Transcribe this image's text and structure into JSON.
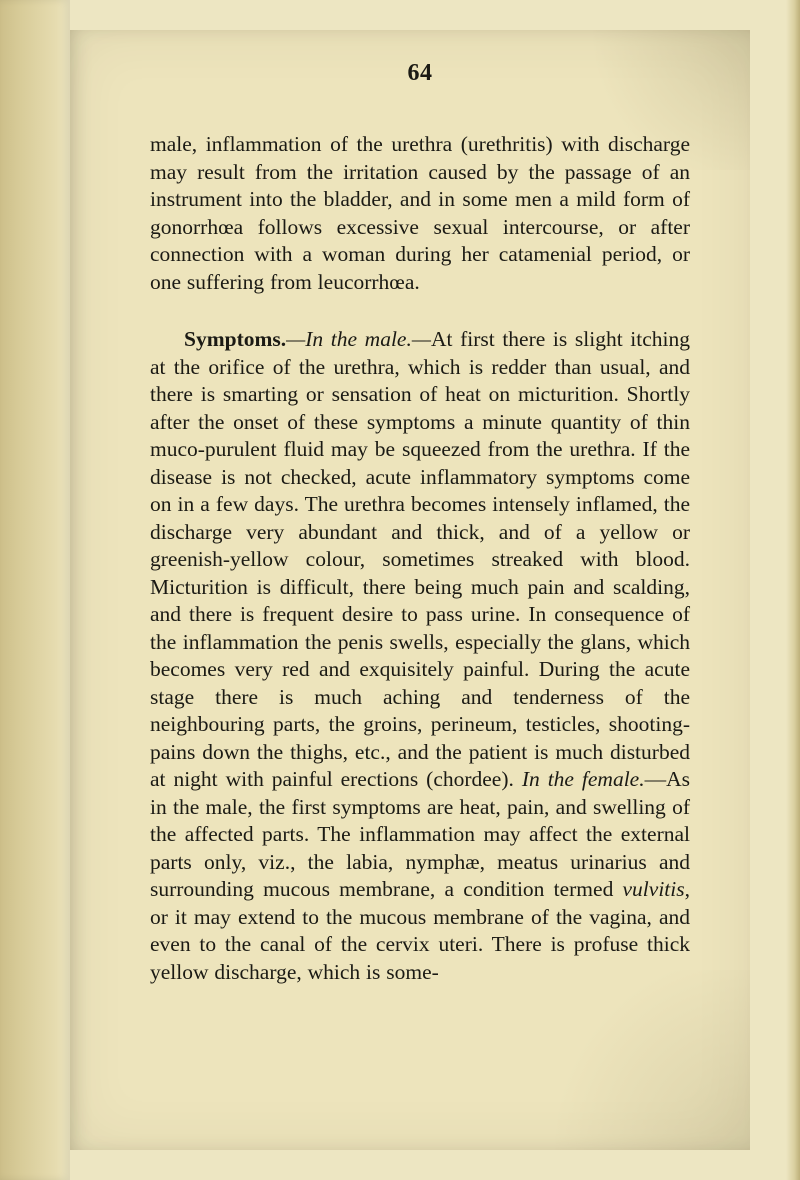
{
  "page": {
    "number": "64",
    "background_color": "#ede4bc",
    "outer_background": "#ede6c2",
    "text_color": "#1b1a14",
    "font_family": "Times New Roman",
    "font_size_pt": 16,
    "line_height": 1.28
  },
  "paragraphs": {
    "p1": "male, inflammation of the urethra (urethritis) with discharge may result from the irritation caused by the passage of an instrument into the bladder, and in some men a mild form of gonorrhœa follows excessive sexual intercourse, or after connection with a woman during her catamenial period, or one suffering from leu­corrhœa.",
    "p2_lead": "Symptoms.",
    "p2_em1": "—In the male.—",
    "p2_a": "At first there is slight itching at the orifice of the urethra, which is redder than usual, and there is smarting or sensation of heat on micturition. Shortly after the onset of these symptoms a minute quantity of thin muco-purulent fluid may be squeezed from the urethra. If the disease is not checked, acute inflammatory symptoms come on in a few days. The urethra becomes intensely in­flamed, the discharge very abundant and thick, and of a yellow or greenish-yellow colour, sometimes streaked with blood. Micturition is difficult, there being much pain and scalding, and there is frequent desire to pass urine. In consequence of the inflammation the penis swells, especially the glans, which becomes very red and exquisitely painful. During the acute stage there is much aching and tenderness of the neighbouring parts, the groins, perineum, testicles, shooting-pains down the thighs, etc., and the patient is much disturbed at night with painful erections (chordee). ",
    "p2_em2": "In the female.",
    "p2_b": "—As in the male, the first symptoms are heat, pain, and swelling of the affected parts. The in­flammation may affect the external parts only, viz., the labia, nymphæ, meatus urinarius and surrounding mucous membrane, a condition termed ",
    "p2_em3": "vulvitis",
    "p2_c": ", or it may extend to the mucous membrane of the vagina, and even to the canal of the cervix uteri. There is profuse thick yellow discharge, which is some-"
  }
}
